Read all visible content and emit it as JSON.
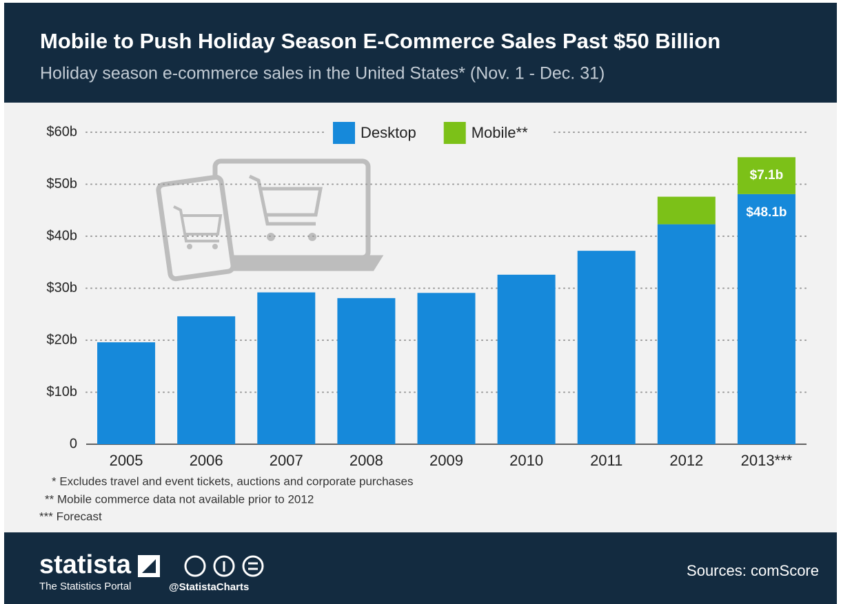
{
  "chart_data": {
    "type": "stacked-bar",
    "title": "Mobile to Push Holiday Season E-Commerce Sales Past $50 Billion",
    "subtitle": "Holiday season e-commerce sales in the United States* (Nov. 1 - Dec. 31)",
    "categories": [
      "2005",
      "2006",
      "2007",
      "2008",
      "2009",
      "2010",
      "2011",
      "2012",
      "2013***"
    ],
    "series": [
      {
        "name": "Desktop",
        "color": "#1689da",
        "values": [
          19.6,
          24.6,
          29.2,
          28.1,
          29.1,
          32.6,
          37.2,
          42.3,
          48.1
        ],
        "value_labels": [
          null,
          null,
          null,
          null,
          null,
          null,
          null,
          null,
          "$48.1b"
        ]
      },
      {
        "name": "Mobile**",
        "color": "#7cc118",
        "values": [
          null,
          null,
          null,
          null,
          null,
          null,
          null,
          5.3,
          7.1
        ],
        "value_labels": [
          null,
          null,
          null,
          null,
          null,
          null,
          null,
          null,
          "$7.1b"
        ]
      }
    ],
    "ylim": [
      0,
      60
    ],
    "yticks": [
      0,
      {
        "value": 10,
        "label": "$10b"
      },
      {
        "value": 20,
        "label": "$20b"
      },
      {
        "value": 30,
        "label": "$30b"
      },
      {
        "value": 40,
        "label": "$40b"
      },
      {
        "value": 50,
        "label": "$50b"
      },
      {
        "value": 60,
        "label": "$60b"
      }
    ],
    "grid": true,
    "legend": "top",
    "notes": [
      "* Excludes travel and event tickets, auctions and corporate purchases",
      "** Mobile commerce data not available prior to 2012",
      "*** Forecast"
    ]
  },
  "footer": {
    "brand": "statista",
    "tagline": "The Statistics Portal",
    "handle": "@StatistaCharts",
    "source": "Sources: comScore"
  }
}
